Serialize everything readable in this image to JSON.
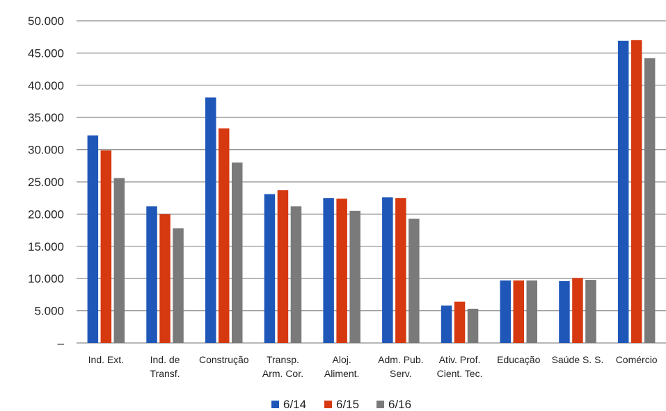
{
  "chart_data": {
    "type": "bar",
    "categories": [
      [
        "Ind. Ext."
      ],
      [
        "Ind.  de",
        "Transf."
      ],
      [
        "Construção"
      ],
      [
        "Transp.",
        "Arm. Cor."
      ],
      [
        "Aloj.",
        "Aliment."
      ],
      [
        "Adm. Pub.",
        "Serv."
      ],
      [
        "Ativ. Prof.",
        "Cient. Tec."
      ],
      [
        "Educação"
      ],
      [
        "Saúde S. S."
      ],
      [
        "Comércio"
      ]
    ],
    "series": [
      {
        "name": "6/14",
        "color": "#1f57b8",
        "values": [
          32200,
          21200,
          38100,
          23100,
          22500,
          22600,
          5800,
          9700,
          9600,
          46900
        ]
      },
      {
        "name": "6/15",
        "color": "#d6380f",
        "values": [
          29900,
          20000,
          33300,
          23700,
          22400,
          22500,
          6400,
          9700,
          10100,
          47000
        ]
      },
      {
        "name": "6/16",
        "color": "#7a7a7a",
        "values": [
          25600,
          17800,
          28000,
          21200,
          20500,
          19300,
          5300,
          9700,
          9800,
          44200
        ]
      }
    ],
    "ylim": [
      0,
      50000
    ],
    "y_ticks": [
      0,
      5000,
      10000,
      15000,
      20000,
      25000,
      30000,
      35000,
      40000,
      45000,
      50000
    ],
    "y_tick_labels": [
      "–",
      "5.000",
      "10.000",
      "15.000",
      "20.000",
      "25.000",
      "30.000",
      "35.000",
      "40.000",
      "45.000",
      "50.000"
    ],
    "grid": true,
    "legend_position": "bottom"
  }
}
